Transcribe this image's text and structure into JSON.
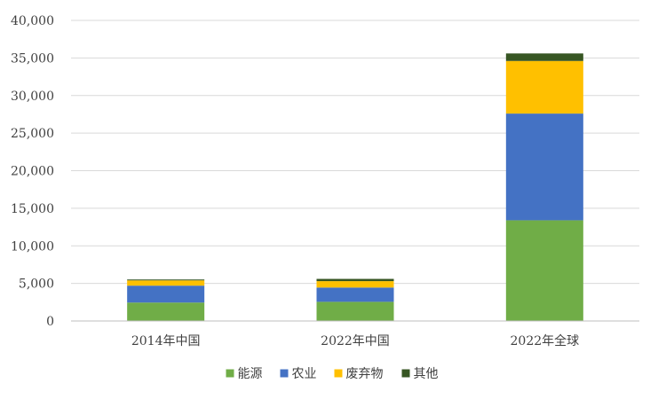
{
  "chart_data": {
    "type": "bar",
    "stacked": true,
    "categories": [
      "2014年中国",
      "2022年中国",
      "2022年全球"
    ],
    "series": [
      {
        "name": "能源",
        "color": "#70ad47",
        "values": [
          2450,
          2550,
          13400
        ]
      },
      {
        "name": "农业",
        "color": "#4472c4",
        "values": [
          2250,
          1900,
          14200
        ]
      },
      {
        "name": "废弃物",
        "color": "#ffc000",
        "values": [
          700,
          850,
          7000
        ]
      },
      {
        "name": "其他",
        "color": "#375623",
        "values": [
          120,
          300,
          1000
        ]
      }
    ],
    "yticks": [
      "0",
      "5,000",
      "10,000",
      "15,000",
      "20,000",
      "25,000",
      "30,000",
      "35,000",
      "40,000"
    ],
    "ylim": [
      0,
      40000
    ],
    "grid": true,
    "legend_position": "bottom"
  }
}
